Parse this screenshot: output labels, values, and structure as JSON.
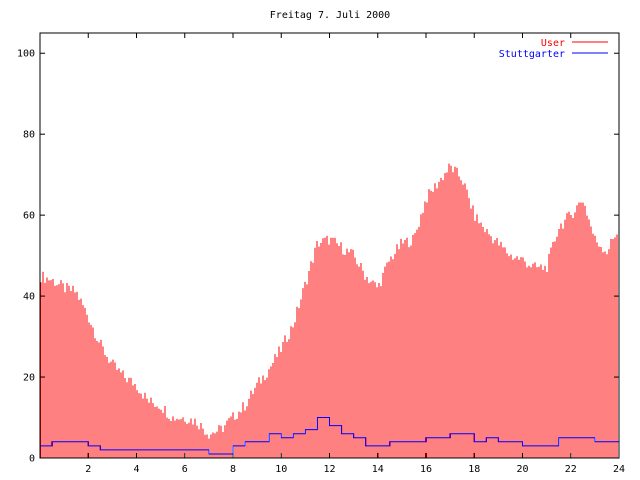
{
  "chart_data": {
    "type": "bar",
    "title": "Freitag 7. Juli 2000",
    "xlabel": "",
    "ylabel": "",
    "xlim": [
      0,
      24
    ],
    "ylim": [
      0,
      105
    ],
    "xticks": [
      "2",
      "4",
      "6",
      "8",
      "10",
      "12",
      "14",
      "16",
      "18",
      "20",
      "22",
      "24"
    ],
    "yticks": [
      "0",
      "20",
      "40",
      "60",
      "80",
      "100"
    ],
    "grid": false,
    "legend_position": "top-right",
    "series": [
      {
        "name": "User",
        "style": "impulses",
        "color": "#ff0000",
        "x": [
          0.0,
          0.5,
          1.0,
          1.5,
          2.0,
          2.5,
          3.0,
          3.5,
          4.0,
          4.5,
          5.0,
          5.5,
          6.0,
          6.5,
          7.0,
          7.5,
          8.0,
          8.5,
          9.0,
          9.5,
          10.0,
          10.5,
          11.0,
          11.5,
          12.0,
          12.5,
          13.0,
          13.5,
          14.0,
          14.5,
          15.0,
          15.5,
          16.0,
          16.5,
          17.0,
          17.5,
          18.0,
          18.5,
          19.0,
          19.5,
          20.0,
          20.5,
          21.0,
          21.5,
          22.0,
          22.5,
          23.0,
          23.5,
          24.0
        ],
        "values": [
          45,
          44,
          42,
          41,
          35,
          28,
          23,
          20,
          18,
          14,
          13,
          10,
          10,
          9,
          6,
          7,
          10,
          13,
          18,
          22,
          27,
          33,
          43,
          53,
          54,
          52,
          50,
          45,
          42,
          49,
          53,
          54,
          64,
          68,
          72,
          69,
          60,
          56,
          53,
          50,
          49,
          47,
          47,
          57,
          60,
          64,
          54,
          51,
          57
        ]
      },
      {
        "name": "Stuttgarter",
        "style": "steps",
        "color": "#0000ff",
        "x": [
          0.0,
          0.5,
          1.0,
          1.5,
          2.0,
          2.5,
          3.0,
          3.5,
          4.0,
          4.5,
          5.0,
          5.5,
          6.0,
          6.5,
          7.0,
          7.5,
          8.0,
          8.5,
          9.0,
          9.5,
          10.0,
          10.5,
          11.0,
          11.5,
          12.0,
          12.5,
          13.0,
          13.5,
          14.0,
          14.5,
          15.0,
          15.5,
          16.0,
          16.5,
          17.0,
          17.5,
          18.0,
          18.5,
          19.0,
          19.5,
          20.0,
          20.5,
          21.0,
          21.5,
          22.0,
          22.5,
          23.0,
          23.5,
          24.0
        ],
        "values": [
          3,
          4,
          4,
          4,
          3,
          2,
          2,
          2,
          2,
          2,
          2,
          2,
          2,
          2,
          1,
          1,
          3,
          4,
          4,
          6,
          5,
          6,
          7,
          10,
          8,
          6,
          5,
          3,
          3,
          4,
          4,
          4,
          5,
          5,
          6,
          6,
          4,
          5,
          4,
          4,
          3,
          3,
          3,
          5,
          5,
          5,
          4,
          4,
          4
        ]
      }
    ]
  }
}
